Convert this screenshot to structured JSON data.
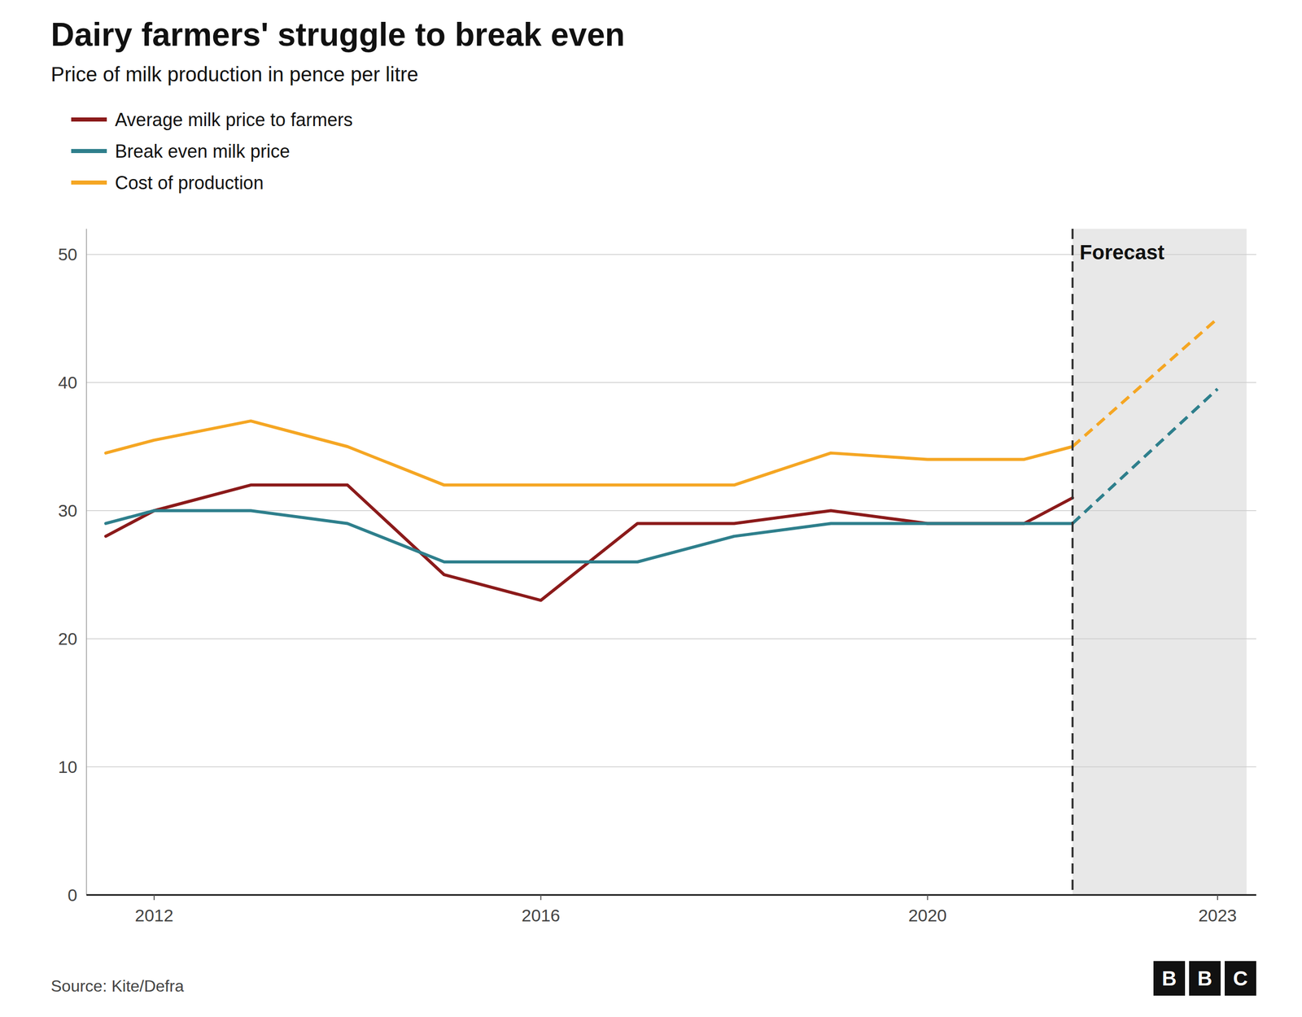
{
  "chart_data": {
    "type": "line",
    "title": "Dairy farmers' struggle to break even",
    "subtitle": "Price of milk production in pence per litre",
    "source": "Source: Kite/Defra",
    "logo": [
      "B",
      "B",
      "C"
    ],
    "legend": "top-left",
    "grid": true,
    "series": [
      {
        "name": "Average milk price to farmers",
        "color": "#8B1A1A",
        "x": [
          2011.5,
          2012,
          2013,
          2014,
          2015,
          2016,
          2017,
          2018,
          2019,
          2020,
          2021,
          2021.5
        ],
        "values": [
          28,
          30,
          32,
          32,
          25,
          23,
          29,
          29,
          30,
          29,
          29,
          31
        ]
      },
      {
        "name": "Break even milk price",
        "color": "#2E7F8C",
        "x": [
          2011.5,
          2012,
          2013,
          2014,
          2015,
          2016,
          2017,
          2018,
          2019,
          2020,
          2021,
          2021.5
        ],
        "values": [
          29,
          30,
          30,
          29,
          26,
          26,
          26,
          28,
          29,
          29,
          29,
          29
        ]
      },
      {
        "name": "Cost of production",
        "color": "#F5A623",
        "x": [
          2011.5,
          2012,
          2013,
          2014,
          2015,
          2016,
          2017,
          2018,
          2019,
          2020,
          2021,
          2021.5
        ],
        "values": [
          34.5,
          35.5,
          37,
          35,
          32,
          32,
          32,
          32,
          34.5,
          34,
          34,
          35
        ]
      },
      {
        "color": "#2E7F8C",
        "line_style": "dashed",
        "x": [
          2021.5,
          2023
        ],
        "values": [
          29,
          39.5
        ]
      },
      {
        "color": "#F5A623",
        "line_style": "dashed",
        "x": [
          2021.5,
          2023
        ],
        "values": [
          35,
          45
        ]
      }
    ],
    "xlim": [
      2011.3,
      2023.4
    ],
    "xticks": [
      2012,
      2016,
      2020,
      2023
    ],
    "ylim": [
      0,
      52
    ],
    "yticks": [
      0,
      10,
      20,
      30,
      40,
      50
    ],
    "forecast_region": {
      "start": 2021.5,
      "end": 2023.3,
      "color": "#E8E8E8",
      "label": "Forecast"
    }
  }
}
